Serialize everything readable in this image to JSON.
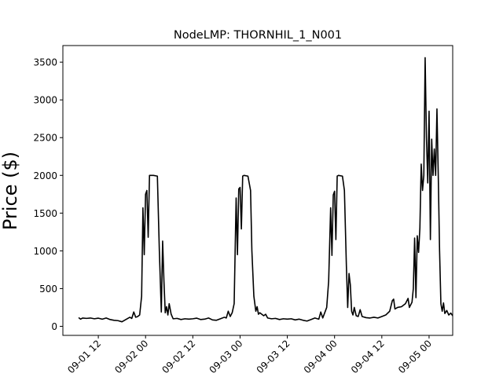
{
  "chart_data": {
    "type": "line",
    "title": "NodeLMP: THORNHIL_1_N001",
    "xlabel": "",
    "ylabel": "Price ($)",
    "x_unit": "datetime",
    "xlim": [
      "2016-09-01T03:00",
      "2016-09-05T06:00"
    ],
    "ylim": [
      -120,
      3720
    ],
    "yticks": [
      0,
      500,
      1000,
      1500,
      2000,
      2500,
      3000,
      3500
    ],
    "xticks": [
      "2016-09-01T12:00",
      "2016-09-02T00:00",
      "2016-09-02T12:00",
      "2016-09-03T00:00",
      "2016-09-03T12:00",
      "2016-09-04T00:00",
      "2016-09-04T12:00",
      "2016-09-05T00:00"
    ],
    "xtick_labels": [
      "09-01 12",
      "09-02 00",
      "09-02 12",
      "09-03 00",
      "09-03 12",
      "09-04 00",
      "09-04 12",
      "09-05 00"
    ],
    "grid": false,
    "legend": "none",
    "series": [
      {
        "color": "#000000",
        "points": [
          [
            "2016-09-01T07:00",
            115
          ],
          [
            "2016-09-01T07:30",
            95
          ],
          [
            "2016-09-01T08:00",
            110
          ],
          [
            "2016-09-01T09:00",
            105
          ],
          [
            "2016-09-01T10:00",
            110
          ],
          [
            "2016-09-01T11:00",
            100
          ],
          [
            "2016-09-01T12:00",
            108
          ],
          [
            "2016-09-01T13:00",
            95
          ],
          [
            "2016-09-01T14:00",
            110
          ],
          [
            "2016-09-01T15:00",
            90
          ],
          [
            "2016-09-01T16:00",
            80
          ],
          [
            "2016-09-01T17:00",
            75
          ],
          [
            "2016-09-01T18:00",
            60
          ],
          [
            "2016-09-01T19:00",
            90
          ],
          [
            "2016-09-01T20:00",
            120
          ],
          [
            "2016-09-01T20:30",
            105
          ],
          [
            "2016-09-01T21:00",
            190
          ],
          [
            "2016-09-01T21:30",
            120
          ],
          [
            "2016-09-01T22:00",
            130
          ],
          [
            "2016-09-01T22:30",
            150
          ],
          [
            "2016-09-01T23:00",
            400
          ],
          [
            "2016-09-01T23:20",
            1570
          ],
          [
            "2016-09-01T23:40",
            950
          ],
          [
            "2016-09-02T00:00",
            1750
          ],
          [
            "2016-09-02T00:20",
            1800
          ],
          [
            "2016-09-02T00:40",
            1180
          ],
          [
            "2016-09-02T01:00",
            2000
          ],
          [
            "2016-09-02T02:00",
            2000
          ],
          [
            "2016-09-02T03:00",
            1990
          ],
          [
            "2016-09-02T03:30",
            1000
          ],
          [
            "2016-09-02T04:00",
            190
          ],
          [
            "2016-09-02T04:20",
            1130
          ],
          [
            "2016-09-02T04:40",
            600
          ],
          [
            "2016-09-02T05:00",
            180
          ],
          [
            "2016-09-02T05:20",
            260
          ],
          [
            "2016-09-02T05:40",
            150
          ],
          [
            "2016-09-02T06:00",
            300
          ],
          [
            "2016-09-02T06:30",
            160
          ],
          [
            "2016-09-02T07:00",
            100
          ],
          [
            "2016-09-02T08:00",
            105
          ],
          [
            "2016-09-02T09:00",
            90
          ],
          [
            "2016-09-02T10:00",
            100
          ],
          [
            "2016-09-02T11:00",
            95
          ],
          [
            "2016-09-02T12:00",
            100
          ],
          [
            "2016-09-02T13:00",
            108
          ],
          [
            "2016-09-02T14:00",
            90
          ],
          [
            "2016-09-02T15:00",
            95
          ],
          [
            "2016-09-02T16:00",
            110
          ],
          [
            "2016-09-02T17:00",
            85
          ],
          [
            "2016-09-02T18:00",
            80
          ],
          [
            "2016-09-02T19:00",
            100
          ],
          [
            "2016-09-02T20:00",
            120
          ],
          [
            "2016-09-02T20:30",
            110
          ],
          [
            "2016-09-02T21:00",
            200
          ],
          [
            "2016-09-02T21:30",
            130
          ],
          [
            "2016-09-02T22:00",
            180
          ],
          [
            "2016-09-02T22:30",
            300
          ],
          [
            "2016-09-02T23:00",
            1700
          ],
          [
            "2016-09-02T23:20",
            950
          ],
          [
            "2016-09-02T23:40",
            1820
          ],
          [
            "2016-09-03T00:00",
            1840
          ],
          [
            "2016-09-03T00:20",
            1290
          ],
          [
            "2016-09-03T00:40",
            1990
          ],
          [
            "2016-09-03T01:00",
            2000
          ],
          [
            "2016-09-03T02:00",
            1990
          ],
          [
            "2016-09-03T02:40",
            1800
          ],
          [
            "2016-09-03T03:00",
            1000
          ],
          [
            "2016-09-03T03:30",
            400
          ],
          [
            "2016-09-03T04:00",
            200
          ],
          [
            "2016-09-03T04:20",
            260
          ],
          [
            "2016-09-03T04:40",
            160
          ],
          [
            "2016-09-03T05:00",
            180
          ],
          [
            "2016-09-03T06:00",
            140
          ],
          [
            "2016-09-03T06:30",
            160
          ],
          [
            "2016-09-03T07:00",
            110
          ],
          [
            "2016-09-03T08:00",
            100
          ],
          [
            "2016-09-03T09:00",
            105
          ],
          [
            "2016-09-03T10:00",
            90
          ],
          [
            "2016-09-03T11:00",
            100
          ],
          [
            "2016-09-03T12:00",
            95
          ],
          [
            "2016-09-03T13:00",
            100
          ],
          [
            "2016-09-03T14:00",
            85
          ],
          [
            "2016-09-03T15:00",
            95
          ],
          [
            "2016-09-03T16:00",
            80
          ],
          [
            "2016-09-03T17:00",
            70
          ],
          [
            "2016-09-03T18:00",
            90
          ],
          [
            "2016-09-03T19:00",
            110
          ],
          [
            "2016-09-03T20:00",
            95
          ],
          [
            "2016-09-03T20:30",
            190
          ],
          [
            "2016-09-03T21:00",
            110
          ],
          [
            "2016-09-03T21:30",
            180
          ],
          [
            "2016-09-03T22:00",
            250
          ],
          [
            "2016-09-03T22:30",
            600
          ],
          [
            "2016-09-03T23:00",
            1570
          ],
          [
            "2016-09-03T23:20",
            940
          ],
          [
            "2016-09-03T23:40",
            1740
          ],
          [
            "2016-09-04T00:00",
            1790
          ],
          [
            "2016-09-04T00:20",
            1150
          ],
          [
            "2016-09-04T00:40",
            1990
          ],
          [
            "2016-09-04T01:00",
            2000
          ],
          [
            "2016-09-04T02:00",
            1990
          ],
          [
            "2016-09-04T02:30",
            1800
          ],
          [
            "2016-09-04T03:00",
            800
          ],
          [
            "2016-09-04T03:20",
            250
          ],
          [
            "2016-09-04T03:40",
            700
          ],
          [
            "2016-09-04T04:00",
            550
          ],
          [
            "2016-09-04T04:20",
            200
          ],
          [
            "2016-09-04T04:40",
            150
          ],
          [
            "2016-09-04T05:00",
            250
          ],
          [
            "2016-09-04T05:30",
            140
          ],
          [
            "2016-09-04T06:00",
            130
          ],
          [
            "2016-09-04T06:30",
            220
          ],
          [
            "2016-09-04T07:00",
            130
          ],
          [
            "2016-09-04T08:00",
            115
          ],
          [
            "2016-09-04T09:00",
            110
          ],
          [
            "2016-09-04T10:00",
            120
          ],
          [
            "2016-09-04T11:00",
            110
          ],
          [
            "2016-09-04T12:00",
            130
          ],
          [
            "2016-09-04T13:00",
            150
          ],
          [
            "2016-09-04T14:00",
            200
          ],
          [
            "2016-09-04T14:40",
            340
          ],
          [
            "2016-09-04T15:00",
            360
          ],
          [
            "2016-09-04T15:20",
            230
          ],
          [
            "2016-09-04T16:00",
            250
          ],
          [
            "2016-09-04T17:00",
            260
          ],
          [
            "2016-09-04T18:00",
            300
          ],
          [
            "2016-09-04T18:40",
            370
          ],
          [
            "2016-09-04T19:00",
            250
          ],
          [
            "2016-09-04T19:40",
            320
          ],
          [
            "2016-09-04T20:00",
            500
          ],
          [
            "2016-09-04T20:20",
            1170
          ],
          [
            "2016-09-04T20:40",
            380
          ],
          [
            "2016-09-04T21:00",
            1200
          ],
          [
            "2016-09-04T21:20",
            980
          ],
          [
            "2016-09-04T21:40",
            1300
          ],
          [
            "2016-09-04T22:00",
            2150
          ],
          [
            "2016-09-04T22:20",
            1800
          ],
          [
            "2016-09-04T22:40",
            2000
          ],
          [
            "2016-09-04T23:00",
            3560
          ],
          [
            "2016-09-04T23:20",
            2500
          ],
          [
            "2016-09-04T23:40",
            1900
          ],
          [
            "2016-09-05T00:00",
            2850
          ],
          [
            "2016-09-05T00:20",
            1150
          ],
          [
            "2016-09-05T00:40",
            2480
          ],
          [
            "2016-09-05T01:00",
            2000
          ],
          [
            "2016-09-05T01:20",
            2350
          ],
          [
            "2016-09-05T01:40",
            2000
          ],
          [
            "2016-09-05T02:00",
            2880
          ],
          [
            "2016-09-05T02:20",
            2000
          ],
          [
            "2016-09-05T02:40",
            1000
          ],
          [
            "2016-09-05T03:00",
            300
          ],
          [
            "2016-09-05T03:20",
            200
          ],
          [
            "2016-09-05T03:40",
            310
          ],
          [
            "2016-09-05T04:00",
            170
          ],
          [
            "2016-09-05T04:30",
            210
          ],
          [
            "2016-09-05T05:00",
            150
          ],
          [
            "2016-09-05T05:30",
            175
          ],
          [
            "2016-09-05T06:00",
            140
          ],
          [
            "2016-09-05T06:30",
            130
          ]
        ]
      }
    ]
  }
}
